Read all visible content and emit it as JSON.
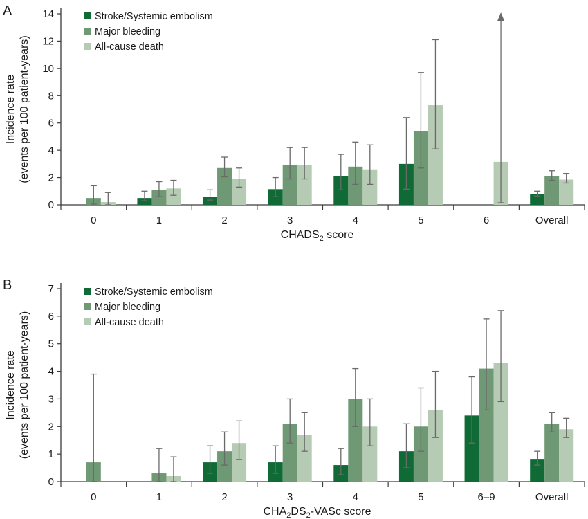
{
  "colors": {
    "stroke": "#0f6a36",
    "bleeding": "#6f9874",
    "death": "#b6cbb3",
    "axis": "#3a3a3a",
    "error": "#6a6a6a"
  },
  "chart_data": [
    {
      "panel": "A",
      "type": "bar",
      "xlabel_main": "CHADS",
      "xlabel_sub": "2",
      "xlabel_tail": " score",
      "ylabel_line1": "Incidence rate",
      "ylabel_line2": "(events per 100 patient-years)",
      "ylim": [
        0,
        14
      ],
      "yticks": [
        0,
        2,
        4,
        6,
        8,
        10,
        12,
        14
      ],
      "legend_position": "top-left",
      "categories": [
        "0",
        "1",
        "2",
        "3",
        "4",
        "5",
        "6",
        "Overall"
      ],
      "series": [
        {
          "name": "Stroke/Systemic embolism",
          "color_key": "stroke",
          "values": [
            0,
            0.5,
            0.6,
            1.15,
            2.1,
            3.0,
            0,
            0.8
          ],
          "err_low": [
            null,
            0.3,
            0.35,
            0.6,
            1.1,
            1.15,
            null,
            0.65
          ],
          "err_high": [
            null,
            1.0,
            1.1,
            2.0,
            3.7,
            6.4,
            null,
            1.0
          ]
        },
        {
          "name": "Major bleeding",
          "color_key": "bleeding",
          "values": [
            0.5,
            1.1,
            2.7,
            2.9,
            2.8,
            5.4,
            0,
            2.1
          ],
          "err_low": [
            0.05,
            0.6,
            2.05,
            1.9,
            1.5,
            2.7,
            null,
            1.8
          ],
          "err_high": [
            1.4,
            1.7,
            3.5,
            4.2,
            4.6,
            9.7,
            null,
            2.5
          ]
        },
        {
          "name": "All-cause death",
          "color_key": "death",
          "values": [
            0.2,
            1.2,
            1.9,
            2.9,
            2.6,
            7.3,
            3.15,
            1.85
          ],
          "err_low": [
            0.0,
            0.7,
            1.3,
            1.9,
            1.5,
            4.1,
            0.15,
            1.6
          ],
          "err_high": [
            0.9,
            1.8,
            2.7,
            4.2,
            4.4,
            12.1,
            14,
            2.3
          ]
        }
      ],
      "annotations": [
        "Upper error bar for All-cause death at score 6 extends beyond the axis (arrow)"
      ]
    },
    {
      "panel": "B",
      "type": "bar",
      "xlabel_main": "CHA",
      "xlabel_sub": "2",
      "xlabel_mid": "DS",
      "xlabel_sub2": "2",
      "xlabel_tail": "-VASc score",
      "ylabel_line1": "Incidence rate",
      "ylabel_line2": "(events per 100 patient-years)",
      "ylim": [
        0,
        7
      ],
      "yticks": [
        0,
        1,
        2,
        3,
        4,
        5,
        6,
        7
      ],
      "legend_position": "top-left",
      "categories": [
        "0",
        "1",
        "2",
        "3",
        "4",
        "5",
        "6–9",
        "Overall"
      ],
      "series": [
        {
          "name": "Stroke/Systemic embolism",
          "color_key": "stroke",
          "values": [
            0,
            0,
            0.7,
            0.7,
            0.6,
            1.1,
            2.4,
            0.8
          ],
          "err_low": [
            null,
            null,
            0.3,
            0.3,
            0.25,
            0.5,
            1.4,
            0.6
          ],
          "err_high": [
            null,
            null,
            1.3,
            1.3,
            1.2,
            2.1,
            3.8,
            1.1
          ]
        },
        {
          "name": "Major bleeding",
          "color_key": "bleeding",
          "values": [
            0.7,
            0.3,
            1.1,
            2.1,
            3.0,
            2.0,
            4.1,
            2.1
          ],
          "err_low": [
            0.0,
            0.0,
            0.6,
            1.4,
            2.0,
            1.1,
            2.6,
            1.8
          ],
          "err_high": [
            3.9,
            1.2,
            1.8,
            3.0,
            4.1,
            3.4,
            5.9,
            2.5
          ]
        },
        {
          "name": "All-cause death",
          "color_key": "death",
          "values": [
            0,
            0.2,
            1.4,
            1.7,
            2.0,
            2.6,
            4.3,
            1.9
          ],
          "err_low": [
            null,
            0.0,
            0.8,
            1.1,
            1.3,
            1.6,
            2.9,
            1.6
          ],
          "err_high": [
            null,
            0.9,
            2.2,
            2.5,
            3.0,
            4.0,
            6.2,
            2.3
          ]
        }
      ]
    }
  ]
}
